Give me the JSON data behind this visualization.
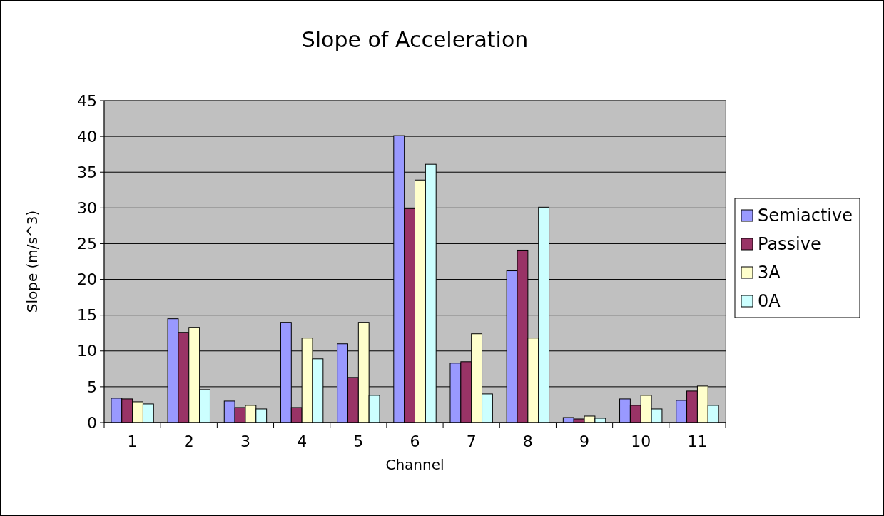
{
  "chart_data": {
    "type": "bar",
    "title": "Slope of Acceleration",
    "xlabel": "Channel",
    "ylabel": "Slope (m/s^3)",
    "categories": [
      "1",
      "2",
      "3",
      "4",
      "5",
      "6",
      "7",
      "8",
      "9",
      "10",
      "11"
    ],
    "series": [
      {
        "name": "Semiactive",
        "color": "#9999ff",
        "values": [
          3.4,
          14.5,
          3,
          14,
          11,
          40.1,
          8.3,
          21.2,
          0.7,
          3.3,
          3.1
        ]
      },
      {
        "name": "Passive",
        "color": "#993366",
        "values": [
          3.3,
          12.6,
          2.1,
          2.1,
          6.3,
          29.9,
          8.5,
          24.1,
          0.5,
          2.4,
          4.4
        ]
      },
      {
        "name": "3A",
        "color": "#ffffcc",
        "values": [
          2.9,
          13.3,
          2.4,
          11.8,
          14,
          33.9,
          12.4,
          11.8,
          0.9,
          3.8,
          5.1
        ]
      },
      {
        "name": "0A",
        "color": "#ccffff",
        "values": [
          2.6,
          4.6,
          1.9,
          8.9,
          3.8,
          36.1,
          4,
          30.1,
          0.6,
          1.9,
          2.4
        ]
      }
    ],
    "ylim": [
      0,
      45
    ],
    "yticks": [
      0,
      5,
      10,
      15,
      20,
      25,
      30,
      35,
      40,
      45
    ],
    "grid": "y",
    "legend": "right"
  }
}
